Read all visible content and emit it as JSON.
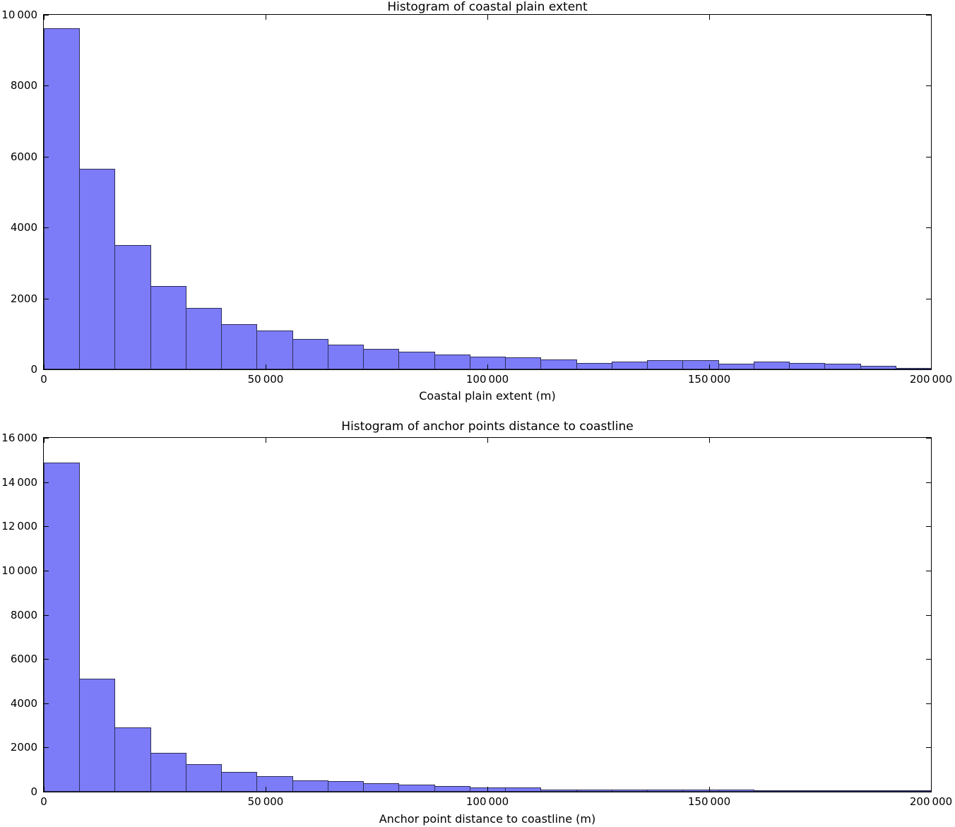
{
  "figure": {
    "background_color": "#ffffff",
    "frame_color": "#000000",
    "bar_fill_color": "#7c7cf8",
    "bar_edge_color": "#2e2e5a"
  },
  "chart_data": [
    {
      "type": "bar",
      "title": "Histogram of coastal plain extent",
      "xlabel": "Coastal plain extent (m)",
      "ylabel": "",
      "bin_start": 0,
      "bin_width": 8000,
      "xlim": [
        0,
        200000
      ],
      "ylim": [
        0,
        10000
      ],
      "grid": false,
      "legend": "none",
      "values": [
        9620,
        5650,
        3515,
        2350,
        1740,
        1280,
        1090,
        860,
        690,
        570,
        490,
        410,
        365,
        345,
        280,
        170,
        220,
        250,
        250,
        150,
        210,
        170,
        150,
        100,
        30
      ],
      "xtick_values": [
        0,
        50000,
        100000,
        150000,
        200000
      ],
      "xtick_labels": [
        "0",
        "50 000",
        "100 000",
        "150 000",
        "200 000"
      ],
      "ytick_values": [
        0,
        2000,
        4000,
        6000,
        8000,
        10000
      ],
      "ytick_labels": [
        "0",
        "2000",
        "4000",
        "6000",
        "8000",
        "10 000"
      ]
    },
    {
      "type": "bar",
      "title": "Histogram of anchor points distance to coastline",
      "xlabel": "Anchor point distance to coastline (m)",
      "ylabel": "",
      "bin_start": 0,
      "bin_width": 8000,
      "xlim": [
        0,
        200000
      ],
      "ylim": [
        0,
        16000
      ],
      "grid": false,
      "legend": "none",
      "values": [
        14870,
        5100,
        2920,
        1760,
        1240,
        890,
        690,
        520,
        470,
        370,
        310,
        260,
        205,
        190,
        95,
        90,
        85,
        100,
        85,
        110,
        50,
        30,
        25,
        10,
        5
      ],
      "xtick_values": [
        0,
        50000,
        100000,
        150000,
        200000
      ],
      "xtick_labels": [
        "0",
        "50 000",
        "100 000",
        "150 000",
        "200 000"
      ],
      "ytick_values": [
        0,
        2000,
        4000,
        6000,
        8000,
        10000,
        12000,
        14000,
        16000
      ],
      "ytick_labels": [
        "0",
        "2000",
        "4000",
        "6000",
        "8000",
        "10 000",
        "12 000",
        "14 000",
        "16 000"
      ]
    }
  ]
}
